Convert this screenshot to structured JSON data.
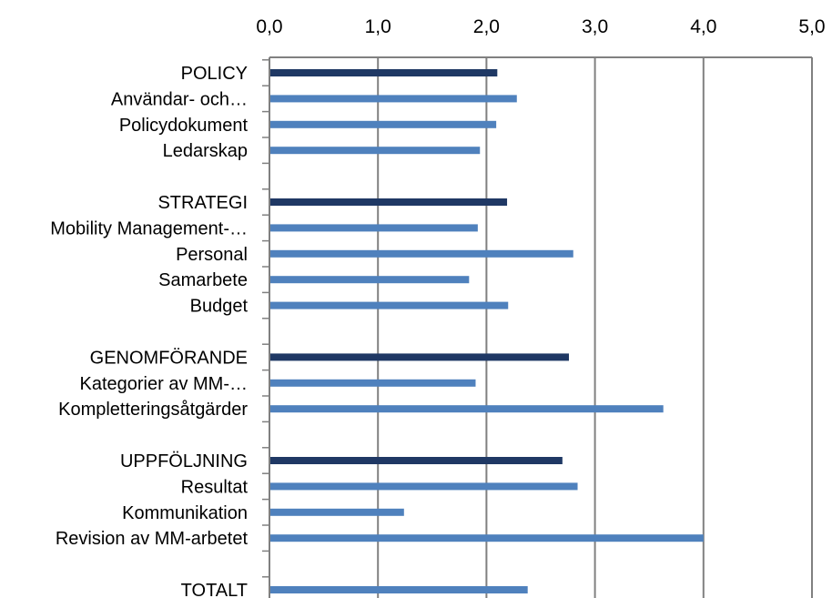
{
  "chart_data": {
    "type": "bar",
    "orientation": "horizontal",
    "xlim": [
      0,
      5
    ],
    "xticks": [
      "0,0",
      "1,0",
      "2,0",
      "3,0",
      "4,0",
      "5,0"
    ],
    "x_axis_position": "top",
    "grid": true,
    "colors": {
      "group": "#1F3864",
      "item": "#4F81BD",
      "grid": "#808080"
    },
    "categories": [
      {
        "label": "POLICY",
        "value": 2.1,
        "kind": "group"
      },
      {
        "label": "Användar- och…",
        "value": 2.28,
        "kind": "item"
      },
      {
        "label": "Policydokument",
        "value": 2.09,
        "kind": "item"
      },
      {
        "label": "Ledarskap",
        "value": 1.94,
        "kind": "item"
      },
      {
        "label": "",
        "value": null,
        "kind": "gap"
      },
      {
        "label": "STRATEGI",
        "value": 2.19,
        "kind": "group"
      },
      {
        "label": "Mobility Management-…",
        "value": 1.92,
        "kind": "item"
      },
      {
        "label": "Personal",
        "value": 2.8,
        "kind": "item"
      },
      {
        "label": "Samarbete",
        "value": 1.84,
        "kind": "item"
      },
      {
        "label": "Budget",
        "value": 2.2,
        "kind": "item"
      },
      {
        "label": "",
        "value": null,
        "kind": "gap"
      },
      {
        "label": "GENOMFÖRANDE",
        "value": 2.76,
        "kind": "group"
      },
      {
        "label": "Kategorier av MM-…",
        "value": 1.9,
        "kind": "item"
      },
      {
        "label": "Kompletteringsåtgärder",
        "value": 3.63,
        "kind": "item"
      },
      {
        "label": "",
        "value": null,
        "kind": "gap"
      },
      {
        "label": "UPPFÖLJNING",
        "value": 2.7,
        "kind": "group"
      },
      {
        "label": "Resultat",
        "value": 2.84,
        "kind": "item"
      },
      {
        "label": "Kommunikation",
        "value": 1.24,
        "kind": "item"
      },
      {
        "label": "Revision av MM-arbetet",
        "value": 4.0,
        "kind": "item"
      },
      {
        "label": "",
        "value": null,
        "kind": "gap"
      },
      {
        "label": "TOTALT",
        "value": 2.38,
        "kind": "item"
      }
    ]
  }
}
